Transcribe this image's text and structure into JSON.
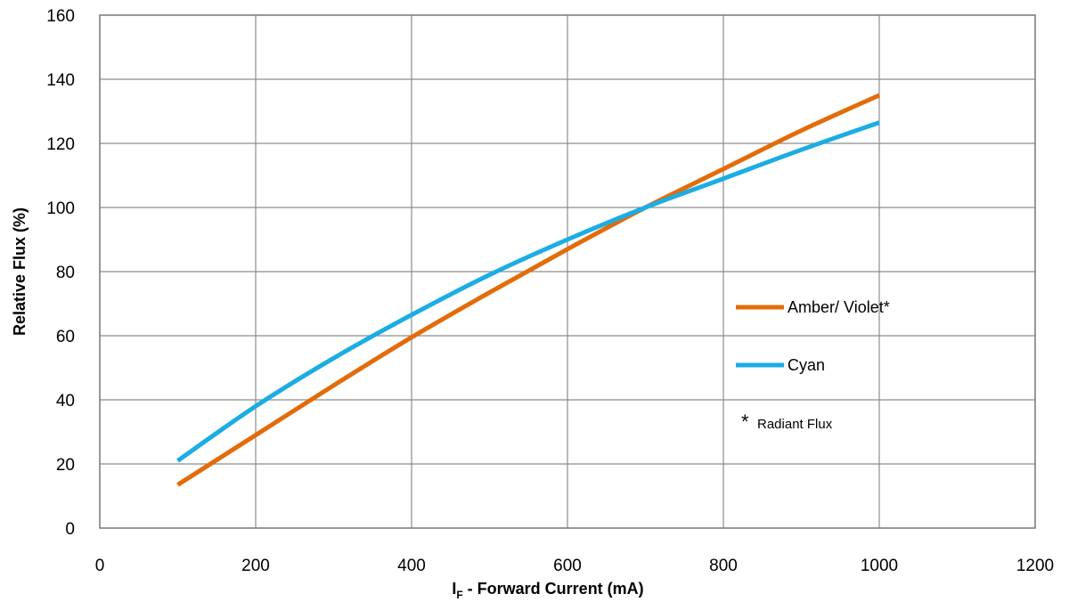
{
  "chart_data": {
    "type": "line",
    "xlabel": {
      "main": "I",
      "sub": "F",
      "rest": " - Forward Current (mA)"
    },
    "ylabel": "Relative Flux (%)",
    "xlim": [
      0,
      1200
    ],
    "ylim": [
      0,
      160
    ],
    "xticks": [
      0,
      200,
      400,
      600,
      800,
      1000,
      1200
    ],
    "yticks": [
      0,
      20,
      40,
      60,
      80,
      100,
      120,
      140,
      160
    ],
    "grid": true,
    "legend_position": "right",
    "series": [
      {
        "name": "Amber/ Violet*",
        "color": "#E36C0A",
        "x": [
          100,
          200,
          300,
          400,
          500,
          600,
          700,
          800,
          900,
          1000
        ],
        "y": [
          13.5,
          29,
          44.5,
          59.5,
          73.5,
          87,
          100,
          112,
          124,
          135
        ]
      },
      {
        "name": "Cyan",
        "color": "#1BADE3",
        "x": [
          100,
          200,
          300,
          400,
          500,
          600,
          700,
          800,
          900,
          1000
        ],
        "y": [
          21,
          38,
          53,
          66.5,
          79,
          90,
          100,
          109,
          118,
          126.5
        ]
      }
    ],
    "annotation": {
      "star": "*",
      "text": "Radiant Flux"
    }
  }
}
